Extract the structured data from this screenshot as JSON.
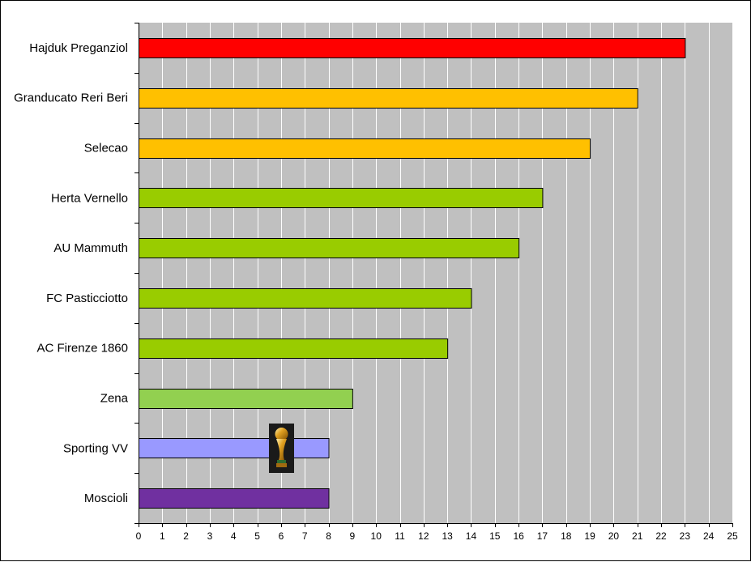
{
  "chart_data": {
    "type": "bar",
    "orientation": "horizontal",
    "categories": [
      "Hajduk Preganziol",
      "Granducato Reri Beri",
      "Selecao",
      "Herta Vernello",
      "AU Mammuth",
      "FC Pasticciotto",
      "AC Firenze 1860",
      "Zena",
      "Sporting VV",
      "Moscioli"
    ],
    "values": [
      23,
      21,
      19,
      17,
      16,
      14,
      13,
      9,
      8,
      8
    ],
    "colors": [
      "#ff0000",
      "#ffc000",
      "#ffc000",
      "#99cc00",
      "#99cc00",
      "#99cc00",
      "#99cc00",
      "#92d050",
      "#9999ff",
      "#7030a0"
    ],
    "xlim": [
      0,
      25
    ],
    "xticks": [
      0,
      1,
      2,
      3,
      4,
      5,
      6,
      7,
      8,
      9,
      10,
      11,
      12,
      13,
      14,
      15,
      16,
      17,
      18,
      19,
      20,
      21,
      22,
      23,
      24,
      25
    ],
    "grid": "vertical",
    "plot_background": "#c0c0c0",
    "legend": "none",
    "trophy_on": "Sporting VV",
    "trophy_icon": "world-cup-trophy-icon"
  }
}
